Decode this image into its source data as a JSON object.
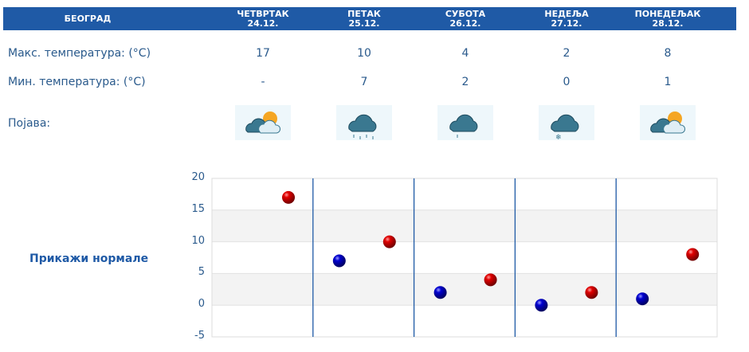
{
  "header": {
    "city": "БЕОГРАД",
    "days": [
      {
        "day": "ЧЕТВРТАК",
        "date": "24.12."
      },
      {
        "day": "ПЕТАК",
        "date": "25.12."
      },
      {
        "day": "СУБОТА",
        "date": "26.12."
      },
      {
        "day": "НЕДЕЉА",
        "date": "27.12."
      },
      {
        "day": "ПОНЕДЕЉАК",
        "date": "28.12."
      }
    ]
  },
  "rows": {
    "max_label": "Макс. температура: (°C)",
    "max": [
      "17",
      "10",
      "4",
      "2",
      "8"
    ],
    "min_label": "Мин. температура: (°C)",
    "min": [
      "-",
      "7",
      "2",
      "0",
      "1"
    ],
    "phen_label": "Појава:",
    "icons": [
      "partly-cloudy-icon",
      "rain-icon",
      "light-rain-icon",
      "snow-icon",
      "partly-cloudy-icon"
    ]
  },
  "show_normals": "Прикажи нормале",
  "chart_data": {
    "type": "scatter",
    "ylim": [
      -5,
      20
    ],
    "yticks": [
      "20",
      "15",
      "10",
      "5",
      "0",
      "-5"
    ],
    "categories": [
      "24.12.",
      "25.12.",
      "26.12.",
      "27.12.",
      "28.12."
    ],
    "series": [
      {
        "values": [
          null,
          7,
          2,
          0,
          1
        ],
        "color": "#0000cc"
      },
      {
        "values": [
          17,
          10,
          4,
          2,
          8
        ],
        "color": "#dd0000"
      }
    ],
    "grid": true
  }
}
